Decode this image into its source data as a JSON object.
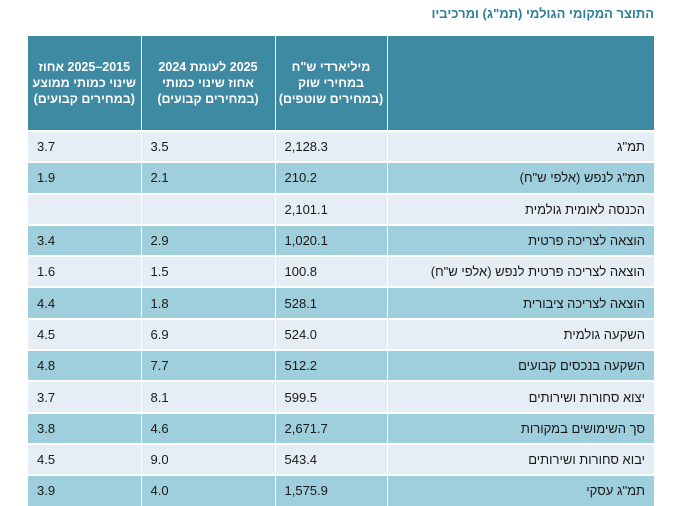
{
  "title": "התוצר המקומי הגולמי (תמ\"ג) ומרכיביו",
  "headers": {
    "avg_change": "2015–2025 אחוז שינוי כמותי ממוצע (במחירים קבועים)",
    "change_2025": "2025 לעומת 2024 אחוז שינוי כמותי (במחירים קבועים)",
    "billions": "מיליארדי ש\"ח במחירי שוק (במחירים שוטפים)",
    "label": ""
  },
  "rows": [
    {
      "label": "תמ\"ג",
      "billions": "2,128.3",
      "change_2025": "3.5",
      "avg_change": "3.7"
    },
    {
      "label": "תמ\"ג לנפש (אלפי ש\"ח)",
      "billions": "210.2",
      "change_2025": "2.1",
      "avg_change": "1.9"
    },
    {
      "label": "הכנסה לאומית גולמית",
      "billions": "2,101.1",
      "change_2025": "",
      "avg_change": ""
    },
    {
      "label": "הוצאה לצריכה פרטית",
      "billions": "1,020.1",
      "change_2025": "2.9",
      "avg_change": "3.4"
    },
    {
      "label": "הוצאה לצריכה פרטית לנפש (אלפי ש\"ח)",
      "billions": "100.8",
      "change_2025": "1.5",
      "avg_change": "1.6"
    },
    {
      "label": "הוצאה לצריכה ציבורית",
      "billions": "528.1",
      "change_2025": "1.8",
      "avg_change": "4.4"
    },
    {
      "label": "השקעה גולמית",
      "billions": "524.0",
      "change_2025": "6.9",
      "avg_change": "4.5"
    },
    {
      "label": "השקעה בנכסים קבועים",
      "billions": "512.2",
      "change_2025": "7.7",
      "avg_change": "4.8"
    },
    {
      "label": "יצוא סחורות ושירותים",
      "billions": "599.5",
      "change_2025": "8.1",
      "avg_change": "3.7"
    },
    {
      "label": "סך השימושים במקורות",
      "billions": "2,671.7",
      "change_2025": "4.6",
      "avg_change": "3.8"
    },
    {
      "label": "יבוא סחורות ושירותים",
      "billions": "543.4",
      "change_2025": "9.0",
      "avg_change": "4.5"
    },
    {
      "label": "תמ\"ג עסקי",
      "billions": "1,575.9",
      "change_2025": "4.0",
      "avg_change": "3.9"
    }
  ]
}
